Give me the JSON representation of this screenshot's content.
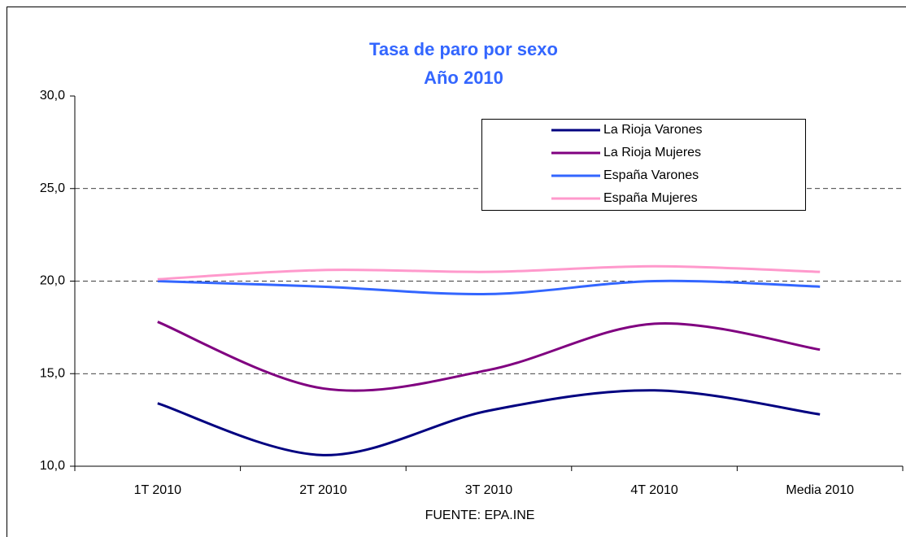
{
  "chart_data": {
    "type": "line",
    "title": "Tasa de paro por sexo",
    "subtitle": "Año 2010",
    "x_label": "FUENTE: EPA.INE",
    "categories": [
      "1T 2010",
      "2T 2010",
      "3T 2010",
      "4T 2010",
      "Media 2010"
    ],
    "series": [
      {
        "name": "La Rioja Varones",
        "color": "#000080",
        "values": [
          13.4,
          10.6,
          13.0,
          14.1,
          12.8
        ]
      },
      {
        "name": "La Rioja Mujeres",
        "color": "#800080",
        "values": [
          17.8,
          14.2,
          15.2,
          17.7,
          16.3
        ]
      },
      {
        "name": "España Varones",
        "color": "#3366ff",
        "values": [
          20.0,
          19.7,
          19.3,
          20.0,
          19.7
        ]
      },
      {
        "name": "España Mujeres",
        "color": "#ff99cc",
        "values": [
          20.1,
          20.6,
          20.5,
          20.8,
          20.5
        ]
      }
    ],
    "ylim": [
      10,
      30
    ],
    "yticks": [
      {
        "value": 10,
        "label": "10,0"
      },
      {
        "value": 15,
        "label": "15,0"
      },
      {
        "value": 20,
        "label": "20,0"
      },
      {
        "value": 25,
        "label": "25,0"
      },
      {
        "value": 30,
        "label": "30,0"
      }
    ],
    "grid": true,
    "smooth": true,
    "legend": "top-right"
  }
}
